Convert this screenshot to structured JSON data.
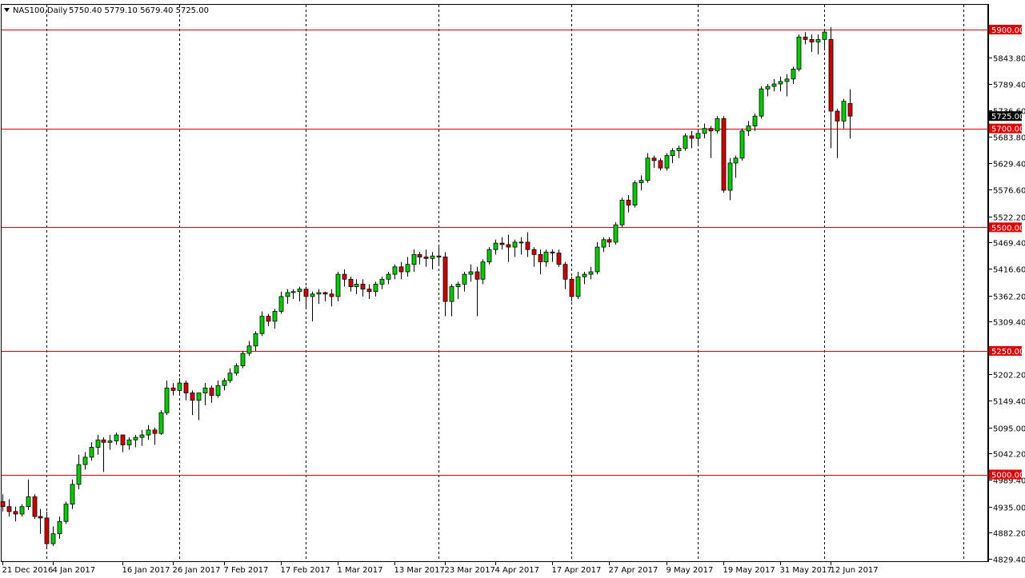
{
  "header": {
    "symbol": "NAS100,Daily",
    "ohlc": "5750.40 5779.10 5679.40 5725.00"
  },
  "colors": {
    "bull": "#00cc00",
    "bear": "#cc0000",
    "level_line": "#dd0000",
    "price_marker_bg": "#000000",
    "grid": "#000000"
  },
  "chart_data": {
    "type": "candlestick",
    "title": "NAS100,Daily",
    "ylim": [
      4829.4,
      5905
    ],
    "y_ticks": [
      "5843.80",
      "5789.40",
      "5736.60",
      "5683.80",
      "5629.40",
      "5576.60",
      "5522.20",
      "5469.40",
      "5416.60",
      "5362.20",
      "5309.40",
      "5202.20",
      "5149.40",
      "5095.00",
      "5042.20",
      "4989.40",
      "4935.00",
      "4882.20",
      "4829.40"
    ],
    "x_tick_labels": [
      "21 Dec 2016",
      "4 Jan 2017",
      "16 Jan 2017",
      "26 Jan 2017",
      "7 Feb 2017",
      "17 Feb 2017",
      "1 Mar 2017",
      "13 Mar 2017",
      "23 Mar 2017",
      "4 Apr 2017",
      "17 Apr 2017",
      "27 Apr 2017",
      "9 May 2017",
      "19 May 2017",
      "31 May 2017",
      "12 Jun 2017"
    ],
    "x_tick_index": [
      0,
      8,
      19,
      27,
      35,
      44,
      53,
      62,
      70,
      78,
      87,
      96,
      105,
      114,
      123,
      131
    ],
    "vertical_grid_index": [
      7,
      28,
      48,
      69,
      90,
      110,
      130,
      152
    ],
    "horizontal_levels": [
      5900,
      5700,
      5500,
      5250,
      5000
    ],
    "level_labels": [
      "5900.00",
      "5700.00",
      "5500.00",
      "5250.00",
      "5000.00"
    ],
    "current_price": 5725.0,
    "current_price_label": "5725.00",
    "candles": [
      [
        4945,
        4960,
        4925,
        4935
      ],
      [
        4935,
        4950,
        4915,
        4925
      ],
      [
        4925,
        4935,
        4905,
        4920
      ],
      [
        4920,
        4940,
        4915,
        4935
      ],
      [
        4935,
        4990,
        4928,
        4955
      ],
      [
        4955,
        4960,
        4910,
        4915
      ],
      [
        4915,
        4930,
        4880,
        4912
      ],
      [
        4912,
        4925,
        4850,
        4860
      ],
      [
        4860,
        4895,
        4855,
        4880
      ],
      [
        4880,
        4915,
        4870,
        4905
      ],
      [
        4905,
        4945,
        4900,
        4940
      ],
      [
        4940,
        4990,
        4930,
        4980
      ],
      [
        4980,
        5040,
        4970,
        5020
      ],
      [
        5020,
        5045,
        5010,
        5035
      ],
      [
        5035,
        5065,
        5028,
        5055
      ],
      [
        5055,
        5080,
        5040,
        5070
      ],
      [
        5070,
        5075,
        5005,
        5065
      ],
      [
        5065,
        5080,
        5050,
        5068
      ],
      [
        5068,
        5085,
        5060,
        5080
      ],
      [
        5080,
        5080,
        5045,
        5060
      ],
      [
        5060,
        5075,
        5050,
        5070
      ],
      [
        5070,
        5080,
        5055,
        5075
      ],
      [
        5075,
        5090,
        5058,
        5080
      ],
      [
        5080,
        5100,
        5070,
        5090
      ],
      [
        5090,
        5095,
        5060,
        5083
      ],
      [
        5083,
        5130,
        5080,
        5125
      ],
      [
        5125,
        5190,
        5120,
        5175
      ],
      [
        5175,
        5185,
        5160,
        5170
      ],
      [
        5170,
        5195,
        5160,
        5185
      ],
      [
        5185,
        5190,
        5150,
        5165
      ],
      [
        5165,
        5170,
        5120,
        5150
      ],
      [
        5150,
        5155,
        5110,
        5165
      ],
      [
        5165,
        5185,
        5140,
        5175
      ],
      [
        5175,
        5180,
        5145,
        5160
      ],
      [
        5160,
        5190,
        5155,
        5180
      ],
      [
        5180,
        5195,
        5170,
        5190
      ],
      [
        5190,
        5215,
        5185,
        5205
      ],
      [
        5205,
        5225,
        5200,
        5220
      ],
      [
        5220,
        5250,
        5215,
        5245
      ],
      [
        5245,
        5270,
        5240,
        5260
      ],
      [
        5260,
        5290,
        5250,
        5285
      ],
      [
        5285,
        5330,
        5280,
        5320
      ],
      [
        5320,
        5325,
        5300,
        5310
      ],
      [
        5310,
        5335,
        5295,
        5330
      ],
      [
        5330,
        5370,
        5325,
        5360
      ],
      [
        5360,
        5375,
        5345,
        5368
      ],
      [
        5368,
        5375,
        5355,
        5370
      ],
      [
        5370,
        5380,
        5350,
        5375
      ],
      [
        5375,
        5380,
        5335,
        5360
      ],
      [
        5360,
        5370,
        5310,
        5365
      ],
      [
        5365,
        5375,
        5345,
        5368
      ],
      [
        5368,
        5370,
        5350,
        5365
      ],
      [
        5365,
        5375,
        5340,
        5360
      ],
      [
        5360,
        5410,
        5350,
        5405
      ],
      [
        5405,
        5415,
        5380,
        5395
      ],
      [
        5395,
        5400,
        5370,
        5380
      ],
      [
        5380,
        5395,
        5365,
        5385
      ],
      [
        5385,
        5395,
        5360,
        5375
      ],
      [
        5375,
        5385,
        5355,
        5370
      ],
      [
        5370,
        5390,
        5360,
        5385
      ],
      [
        5385,
        5400,
        5375,
        5395
      ],
      [
        5395,
        5410,
        5385,
        5405
      ],
      [
        5405,
        5425,
        5395,
        5420
      ],
      [
        5420,
        5430,
        5395,
        5410
      ],
      [
        5410,
        5440,
        5400,
        5425
      ],
      [
        5425,
        5455,
        5410,
        5445
      ],
      [
        5445,
        5450,
        5425,
        5440
      ],
      [
        5440,
        5455,
        5420,
        5437
      ],
      [
        5437,
        5450,
        5415,
        5442
      ],
      [
        5442,
        5460,
        5425,
        5440
      ],
      [
        5440,
        5450,
        5320,
        5350
      ],
      [
        5350,
        5385,
        5320,
        5380
      ],
      [
        5380,
        5390,
        5355,
        5385
      ],
      [
        5385,
        5410,
        5370,
        5405
      ],
      [
        5405,
        5425,
        5390,
        5410
      ],
      [
        5410,
        5420,
        5320,
        5395
      ],
      [
        5395,
        5435,
        5385,
        5430
      ],
      [
        5430,
        5460,
        5425,
        5455
      ],
      [
        5455,
        5475,
        5445,
        5468
      ],
      [
        5468,
        5480,
        5455,
        5465
      ],
      [
        5465,
        5485,
        5430,
        5460
      ],
      [
        5460,
        5475,
        5440,
        5470
      ],
      [
        5470,
        5480,
        5445,
        5470
      ],
      [
        5470,
        5490,
        5440,
        5455
      ],
      [
        5455,
        5460,
        5420,
        5445
      ],
      [
        5445,
        5455,
        5405,
        5430
      ],
      [
        5430,
        5455,
        5420,
        5450
      ],
      [
        5450,
        5455,
        5430,
        5448
      ],
      [
        5448,
        5455,
        5420,
        5425
      ],
      [
        5425,
        5430,
        5375,
        5395
      ],
      [
        5395,
        5400,
        5350,
        5360
      ],
      [
        5360,
        5410,
        5355,
        5400
      ],
      [
        5400,
        5410,
        5385,
        5405
      ],
      [
        5405,
        5420,
        5395,
        5410
      ],
      [
        5410,
        5470,
        5405,
        5460
      ],
      [
        5460,
        5480,
        5450,
        5475
      ],
      [
        5475,
        5480,
        5460,
        5470
      ],
      [
        5470,
        5510,
        5465,
        5505
      ],
      [
        5505,
        5560,
        5500,
        5555
      ],
      [
        5555,
        5565,
        5530,
        5545
      ],
      [
        5545,
        5595,
        5540,
        5590
      ],
      [
        5590,
        5605,
        5575,
        5595
      ],
      [
        5595,
        5650,
        5590,
        5640
      ],
      [
        5640,
        5645,
        5620,
        5635
      ],
      [
        5635,
        5640,
        5615,
        5620
      ],
      [
        5620,
        5650,
        5615,
        5645
      ],
      [
        5645,
        5660,
        5630,
        5655
      ],
      [
        5655,
        5665,
        5640,
        5660
      ],
      [
        5660,
        5690,
        5655,
        5685
      ],
      [
        5685,
        5695,
        5660,
        5680
      ],
      [
        5680,
        5695,
        5665,
        5690
      ],
      [
        5690,
        5710,
        5680,
        5700
      ],
      [
        5700,
        5705,
        5640,
        5695
      ],
      [
        5695,
        5725,
        5690,
        5720
      ],
      [
        5720,
        5725,
        5570,
        5575
      ],
      [
        5575,
        5640,
        5555,
        5630
      ],
      [
        5630,
        5645,
        5600,
        5640
      ],
      [
        5640,
        5700,
        5635,
        5695
      ],
      [
        5695,
        5715,
        5685,
        5705
      ],
      [
        5705,
        5730,
        5695,
        5725
      ],
      [
        5725,
        5785,
        5720,
        5780
      ],
      [
        5780,
        5790,
        5765,
        5785
      ],
      [
        5785,
        5800,
        5775,
        5790
      ],
      [
        5790,
        5805,
        5775,
        5795
      ],
      [
        5795,
        5810,
        5765,
        5800
      ],
      [
        5800,
        5825,
        5790,
        5820
      ],
      [
        5820,
        5890,
        5815,
        5885
      ],
      [
        5885,
        5895,
        5870,
        5880
      ],
      [
        5880,
        5890,
        5855,
        5875
      ],
      [
        5875,
        5890,
        5850,
        5880
      ],
      [
        5880,
        5900,
        5860,
        5895
      ],
      [
        5880,
        5905,
        5660,
        5735
      ],
      [
        5735,
        5740,
        5640,
        5715
      ],
      [
        5715,
        5760,
        5700,
        5755
      ],
      [
        5750.4,
        5779.1,
        5679.4,
        5725
      ]
    ]
  }
}
